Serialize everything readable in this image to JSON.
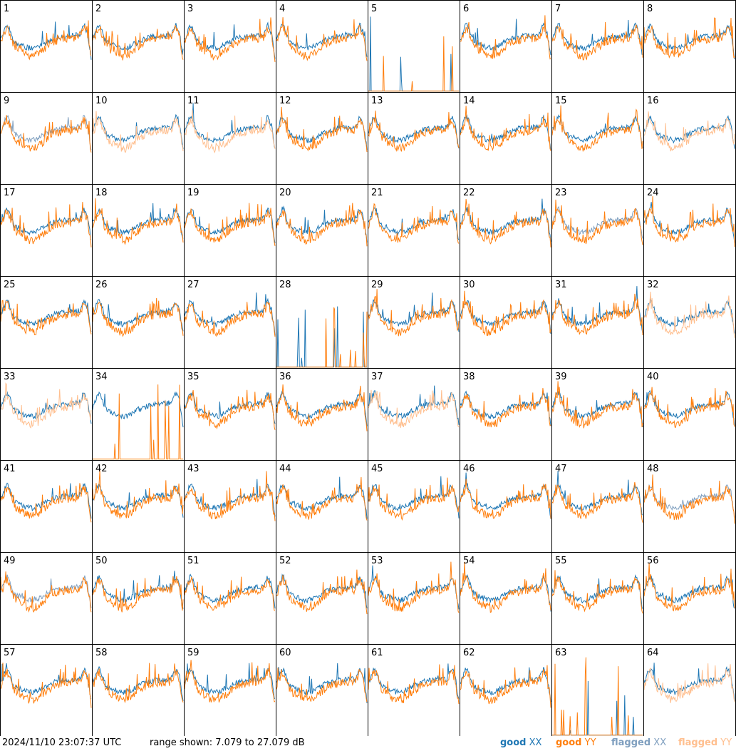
{
  "chart_data": {
    "type": "line",
    "panel_count": 64,
    "panel_labels": [
      "1",
      "2",
      "3",
      "4",
      "5",
      "6",
      "7",
      "8",
      "9",
      "10",
      "11",
      "12",
      "13",
      "14",
      "15",
      "16",
      "17",
      "18",
      "19",
      "20",
      "21",
      "22",
      "23",
      "24",
      "25",
      "26",
      "27",
      "28",
      "29",
      "30",
      "31",
      "32",
      "33",
      "34",
      "35",
      "36",
      "37",
      "38",
      "39",
      "40",
      "41",
      "42",
      "43",
      "44",
      "45",
      "46",
      "47",
      "48",
      "49",
      "50",
      "51",
      "52",
      "53",
      "54",
      "55",
      "56",
      "57",
      "58",
      "59",
      "60",
      "61",
      "62",
      "63",
      "64"
    ],
    "ylim": [
      7.079,
      27.079
    ],
    "yunit": "dB",
    "series": [
      {
        "name": "good XX",
        "color": "#1f77b4"
      },
      {
        "name": "good YY",
        "color": "#ff7f0e"
      },
      {
        "name": "flagged XX",
        "color": "#7f9fbf"
      },
      {
        "name": "flagged YY",
        "color": "#ffbf8f"
      }
    ],
    "flagged_xx_panels": [
      9,
      23,
      48,
      49
    ],
    "flagged_yy_panels": [
      10,
      11,
      16,
      32,
      33,
      37,
      64
    ],
    "dead_xx_panels": [
      5,
      28,
      63
    ],
    "dead_yy_panels": [
      5,
      28,
      34,
      63
    ]
  },
  "footer": {
    "timestamp": "2024/11/10 23:07:37 UTC",
    "range_text": "range shown: 7.079 to 27.079 dB"
  },
  "legend": {
    "good_xx": {
      "word": "good",
      "pol": "XX"
    },
    "good_yy": {
      "word": "good",
      "pol": "YY"
    },
    "flagged_xx": {
      "word": "flagged",
      "pol": "XX"
    },
    "flagged_yy": {
      "word": "flagged",
      "pol": "YY"
    }
  }
}
